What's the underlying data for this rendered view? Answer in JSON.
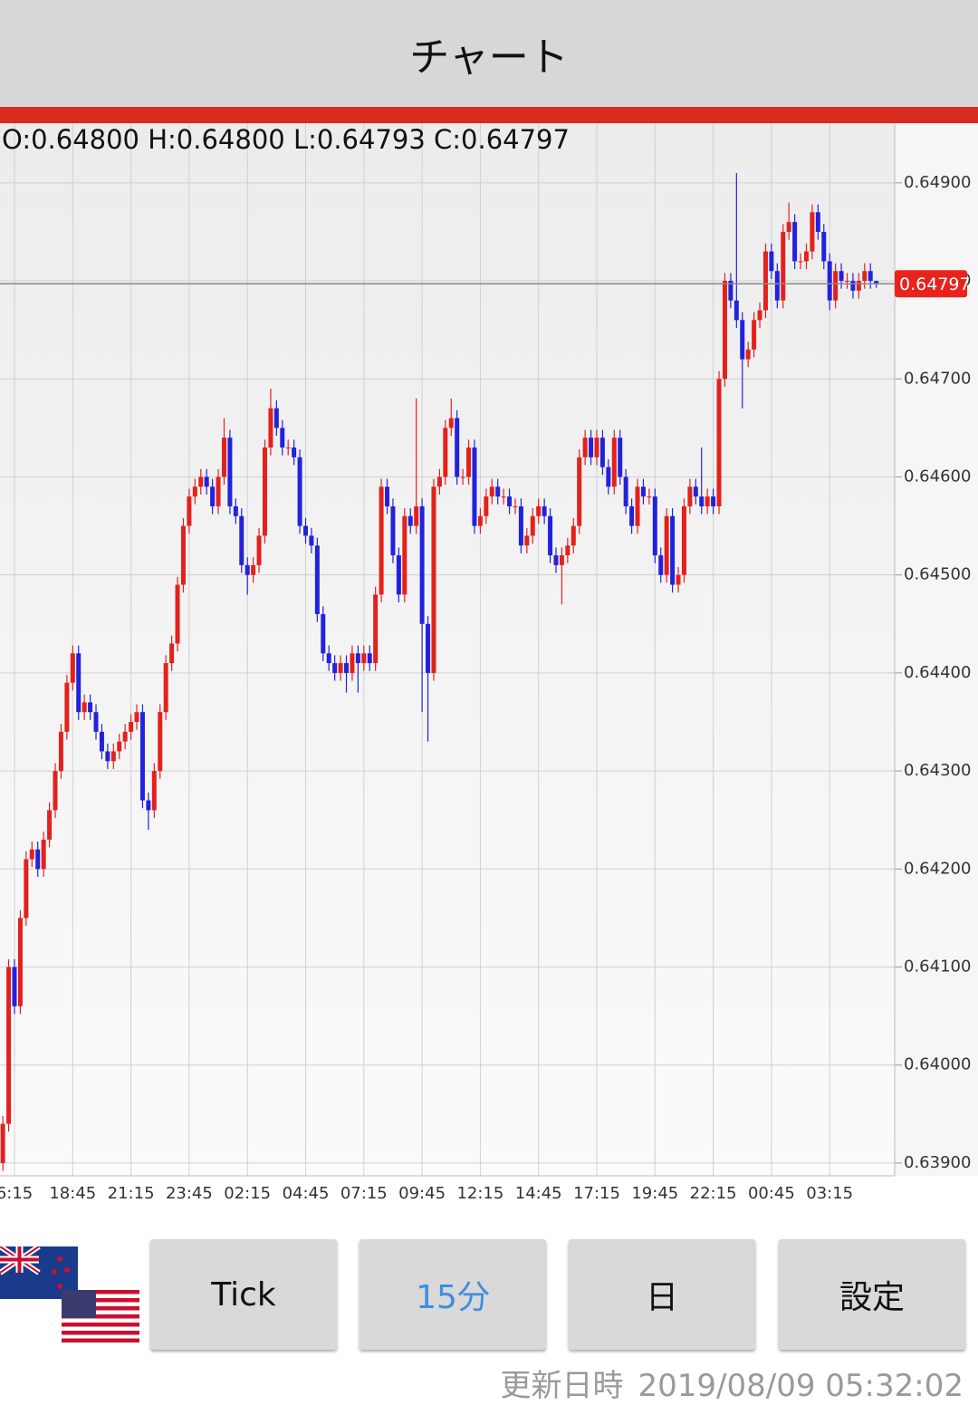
{
  "header": {
    "title": "チャート"
  },
  "buttons": [
    "Tick",
    "15分",
    "日",
    "設定"
  ],
  "footer": {
    "label": "更新日時",
    "time": "2019/08/09 05:32:02"
  },
  "chart_data": {
    "type": "candlestick",
    "ohlc_text": "O:0.64800 H:0.64800 L:0.64793 C:0.64797",
    "up_color": "#e3211c",
    "down_color": "#2222dd",
    "grid": true,
    "ylim": [
      0.63887,
      0.64959
    ],
    "yticks": [
      {
        "value": 0.639,
        "label": "0.63900"
      },
      {
        "value": 0.64,
        "label": "0.64000"
      },
      {
        "value": 0.641,
        "label": "0.64100"
      },
      {
        "value": 0.642,
        "label": "0.64200"
      },
      {
        "value": 0.643,
        "label": "0.64300"
      },
      {
        "value": 0.644,
        "label": "0.64400"
      },
      {
        "value": 0.645,
        "label": "0.64500"
      },
      {
        "value": 0.646,
        "label": "0.64600"
      },
      {
        "value": 0.647,
        "label": "0.64700"
      },
      {
        "value": 0.648,
        "label": "0.64800"
      },
      {
        "value": 0.649,
        "label": "0.64900"
      }
    ],
    "categories": [
      null,
      null,
      "6:15",
      null,
      null,
      null,
      null,
      null,
      null,
      null,
      null,
      null,
      "18:45",
      null,
      null,
      null,
      null,
      null,
      null,
      null,
      null,
      null,
      "21:15",
      null,
      null,
      null,
      null,
      null,
      null,
      null,
      null,
      null,
      "23:45",
      null,
      null,
      null,
      null,
      null,
      null,
      null,
      null,
      null,
      "02:15",
      null,
      null,
      null,
      null,
      null,
      null,
      null,
      null,
      null,
      "04:45",
      null,
      null,
      null,
      null,
      null,
      null,
      null,
      null,
      null,
      "07:15",
      null,
      null,
      null,
      null,
      null,
      null,
      null,
      null,
      null,
      "09:45",
      null,
      null,
      null,
      null,
      null,
      null,
      null,
      null,
      null,
      "12:15",
      null,
      null,
      null,
      null,
      null,
      null,
      null,
      null,
      null,
      "14:45",
      null,
      null,
      null,
      null,
      null,
      null,
      null,
      null,
      null,
      "17:15",
      null,
      null,
      null,
      null,
      null,
      null,
      null,
      null,
      null,
      "19:45",
      null,
      null,
      null,
      null,
      null,
      null,
      null,
      null,
      null,
      "22:15",
      null,
      null,
      null,
      null,
      null,
      null,
      null,
      null,
      null,
      "00:45",
      null,
      null,
      null,
      null,
      null,
      null,
      null,
      null,
      null,
      "03:15",
      null,
      null,
      null,
      null,
      null,
      null,
      null,
      null
    ],
    "open": [
      0.639,
      0.6394,
      0.641,
      0.6406,
      0.6415,
      0.6421,
      0.6422,
      0.642,
      0.6423,
      0.6426,
      0.643,
      0.6434,
      0.6439,
      0.6442,
      0.6436,
      0.6437,
      0.6436,
      0.6434,
      0.6432,
      0.6431,
      0.6432,
      0.6433,
      0.6434,
      0.6435,
      0.6436,
      0.6427,
      0.6426,
      0.643,
      0.6436,
      0.6441,
      0.6443,
      0.6449,
      0.6455,
      0.6458,
      0.6459,
      0.646,
      0.6459,
      0.6457,
      0.646,
      0.6464,
      0.6457,
      0.6456,
      0.6451,
      0.645,
      0.6451,
      0.6454,
      0.6463,
      0.6467,
      0.6465,
      0.6463,
      0.6463,
      0.6462,
      0.6455,
      0.6454,
      0.6453,
      0.6446,
      0.6442,
      0.6441,
      0.644,
      0.6441,
      0.644,
      0.6442,
      0.6441,
      0.6442,
      0.6441,
      0.6448,
      0.6459,
      0.6457,
      0.6452,
      0.6448,
      0.6456,
      0.6455,
      0.6457,
      0.6445,
      0.644,
      0.6459,
      0.646,
      0.6465,
      0.6466,
      0.646,
      0.646,
      0.6463,
      0.6455,
      0.6456,
      0.6458,
      0.6459,
      0.6458,
      0.6458,
      0.6457,
      0.6457,
      0.6453,
      0.6454,
      0.6456,
      0.6457,
      0.6456,
      0.6452,
      0.6451,
      0.6452,
      0.6453,
      0.6455,
      0.6462,
      0.6464,
      0.6462,
      0.6464,
      0.6461,
      0.6459,
      0.6464,
      0.646,
      0.6457,
      0.6455,
      0.6459,
      0.6458,
      0.6458,
      0.6452,
      0.645,
      0.6456,
      0.6449,
      0.645,
      0.6457,
      0.6459,
      0.6458,
      0.6457,
      0.6458,
      0.6457,
      0.647,
      0.648,
      0.6478,
      0.6476,
      0.6472,
      0.6473,
      0.6476,
      0.6477,
      0.6483,
      0.6481,
      0.6478,
      0.6485,
      0.6486,
      0.6482,
      0.6482,
      0.6483,
      0.6487,
      0.6485,
      0.6482,
      0.6478,
      0.6481,
      0.648,
      0.648,
      0.6479,
      0.648,
      0.6481,
      0.648
    ],
    "high": [
      0.63948,
      0.64108,
      0.64108,
      0.64158,
      0.64218,
      0.64228,
      0.64228,
      0.64238,
      0.64268,
      0.64308,
      0.64348,
      0.64398,
      0.64428,
      0.64428,
      0.64378,
      0.64378,
      0.64368,
      0.64348,
      0.64328,
      0.64328,
      0.64338,
      0.64348,
      0.64358,
      0.64368,
      0.64368,
      0.64278,
      0.64308,
      0.64368,
      0.64418,
      0.64438,
      0.64498,
      0.64558,
      0.64588,
      0.64598,
      0.64608,
      0.64608,
      0.64598,
      0.64608,
      0.6466,
      0.64648,
      0.64578,
      0.64568,
      0.64518,
      0.64518,
      0.64548,
      0.64638,
      0.6469,
      0.64678,
      0.64658,
      0.64638,
      0.64638,
      0.64628,
      0.64558,
      0.64548,
      0.64538,
      0.64468,
      0.64428,
      0.64418,
      0.64418,
      0.64418,
      0.64428,
      0.64428,
      0.64428,
      0.64428,
      0.64488,
      0.64598,
      0.64598,
      0.64578,
      0.64528,
      0.64568,
      0.64568,
      0.6468,
      0.64578,
      0.64458,
      0.64598,
      0.64608,
      0.64658,
      0.6468,
      0.64668,
      0.64608,
      0.64638,
      0.64638,
      0.64568,
      0.64588,
      0.64598,
      0.64598,
      0.64588,
      0.64588,
      0.64578,
      0.64578,
      0.64548,
      0.64568,
      0.64578,
      0.64578,
      0.64568,
      0.64528,
      0.64528,
      0.64538,
      0.64558,
      0.64628,
      0.64648,
      0.64648,
      0.64648,
      0.64648,
      0.64618,
      0.64648,
      0.64648,
      0.64608,
      0.64578,
      0.64598,
      0.64598,
      0.64588,
      0.64588,
      0.64528,
      0.64568,
      0.64568,
      0.64508,
      0.64578,
      0.64598,
      0.64598,
      0.6463,
      0.64588,
      0.64588,
      0.64708,
      0.64808,
      0.64808,
      0.6491,
      0.64768,
      0.64738,
      0.64768,
      0.64778,
      0.64838,
      0.64838,
      0.64818,
      0.64858,
      0.6488,
      0.64868,
      0.64828,
      0.64838,
      0.64878,
      0.64878,
      0.64858,
      0.64828,
      0.64818,
      0.64818,
      0.64808,
      0.64808,
      0.64808,
      0.64818,
      0.64818,
      0.648
    ],
    "low": [
      0.63892,
      0.63932,
      0.64052,
      0.64052,
      0.64142,
      0.64202,
      0.64192,
      0.64192,
      0.64222,
      0.64252,
      0.64292,
      0.64332,
      0.64382,
      0.64352,
      0.64352,
      0.64352,
      0.64332,
      0.64312,
      0.64302,
      0.64302,
      0.64312,
      0.64322,
      0.64332,
      0.64342,
      0.64262,
      0.6424,
      0.64252,
      0.64292,
      0.64352,
      0.64402,
      0.64422,
      0.64482,
      0.64542,
      0.64572,
      0.64582,
      0.64582,
      0.64562,
      0.64562,
      0.64592,
      0.64562,
      0.64552,
      0.64502,
      0.6448,
      0.64492,
      0.64502,
      0.64532,
      0.64622,
      0.64642,
      0.64622,
      0.64622,
      0.64612,
      0.64542,
      0.64532,
      0.64522,
      0.64452,
      0.64412,
      0.64402,
      0.64392,
      0.64392,
      0.6438,
      0.64392,
      0.6438,
      0.64402,
      0.64402,
      0.64402,
      0.64472,
      0.64562,
      0.64512,
      0.64472,
      0.64472,
      0.64542,
      0.64542,
      0.6436,
      0.6433,
      0.64392,
      0.64582,
      0.64592,
      0.64642,
      0.64592,
      0.64592,
      0.64592,
      0.64542,
      0.64542,
      0.64552,
      0.64572,
      0.64572,
      0.64572,
      0.64562,
      0.64562,
      0.64522,
      0.64522,
      0.64532,
      0.64552,
      0.64552,
      0.64512,
      0.64502,
      0.6447,
      0.64512,
      0.64522,
      0.64542,
      0.64612,
      0.64612,
      0.64612,
      0.64602,
      0.64582,
      0.64582,
      0.64592,
      0.64562,
      0.64542,
      0.64542,
      0.64572,
      0.64572,
      0.64512,
      0.64492,
      0.64492,
      0.64482,
      0.64482,
      0.64492,
      0.64562,
      0.64572,
      0.64562,
      0.64562,
      0.64562,
      0.64562,
      0.64692,
      0.64772,
      0.64752,
      0.6467,
      0.64712,
      0.64722,
      0.64752,
      0.64762,
      0.64802,
      0.64772,
      0.64772,
      0.64842,
      0.64812,
      0.64812,
      0.64812,
      0.64822,
      0.64842,
      0.64812,
      0.6477,
      0.64772,
      0.64792,
      0.64792,
      0.64782,
      0.64782,
      0.64792,
      0.64792,
      0.64793
    ],
    "close": [
      0.6394,
      0.641,
      0.6406,
      0.6415,
      0.6421,
      0.6422,
      0.642,
      0.6423,
      0.6426,
      0.643,
      0.6434,
      0.6439,
      0.6442,
      0.6436,
      0.6437,
      0.6436,
      0.6434,
      0.6432,
      0.6431,
      0.6432,
      0.6433,
      0.6434,
      0.6435,
      0.6436,
      0.6427,
      0.6426,
      0.643,
      0.6436,
      0.6441,
      0.6443,
      0.6449,
      0.6455,
      0.6458,
      0.6459,
      0.646,
      0.6459,
      0.6457,
      0.646,
      0.6464,
      0.6457,
      0.6456,
      0.6451,
      0.645,
      0.6451,
      0.6454,
      0.6463,
      0.6467,
      0.6465,
      0.6463,
      0.6463,
      0.6462,
      0.6455,
      0.6454,
      0.6453,
      0.6446,
      0.6442,
      0.6441,
      0.644,
      0.6441,
      0.644,
      0.6442,
      0.6441,
      0.6442,
      0.6441,
      0.6448,
      0.6459,
      0.6457,
      0.6452,
      0.6448,
      0.6456,
      0.6455,
      0.6457,
      0.6445,
      0.644,
      0.6459,
      0.646,
      0.6465,
      0.6466,
      0.646,
      0.646,
      0.6463,
      0.6455,
      0.6456,
      0.6458,
      0.6459,
      0.6458,
      0.6458,
      0.6457,
      0.6457,
      0.6453,
      0.6454,
      0.6456,
      0.6457,
      0.6456,
      0.6452,
      0.6451,
      0.6452,
      0.6453,
      0.6455,
      0.6462,
      0.6464,
      0.6462,
      0.6464,
      0.6461,
      0.6459,
      0.6464,
      0.646,
      0.6457,
      0.6455,
      0.6459,
      0.6458,
      0.6458,
      0.6452,
      0.645,
      0.6456,
      0.6449,
      0.645,
      0.6457,
      0.6459,
      0.6458,
      0.6457,
      0.6458,
      0.6457,
      0.647,
      0.648,
      0.6478,
      0.6476,
      0.6472,
      0.6473,
      0.6476,
      0.6477,
      0.6483,
      0.6481,
      0.6478,
      0.6485,
      0.6486,
      0.6482,
      0.6482,
      0.6483,
      0.6487,
      0.6485,
      0.6482,
      0.6478,
      0.6481,
      0.648,
      0.648,
      0.6479,
      0.648,
      0.6481,
      0.648,
      0.64797
    ]
  }
}
